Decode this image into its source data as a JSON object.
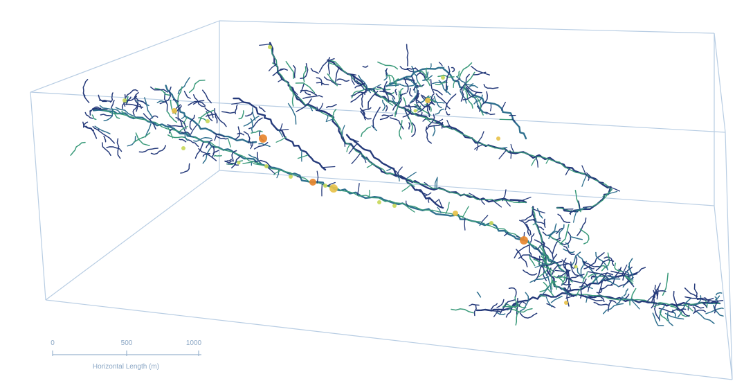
{
  "scale_bar": {
    "ticks": [
      "0",
      "500",
      "1000"
    ],
    "label": "Horizontal Length (m)"
  },
  "colors": {
    "box": "#b8cde3",
    "passage_primary": "#253a7a",
    "passage_secondary": "#2e6f8e",
    "passage_mid": "#3a9a7a",
    "highlight_low": "#c8d85a",
    "highlight_mid": "#e8c24a",
    "highlight_high": "#e8862e"
  }
}
